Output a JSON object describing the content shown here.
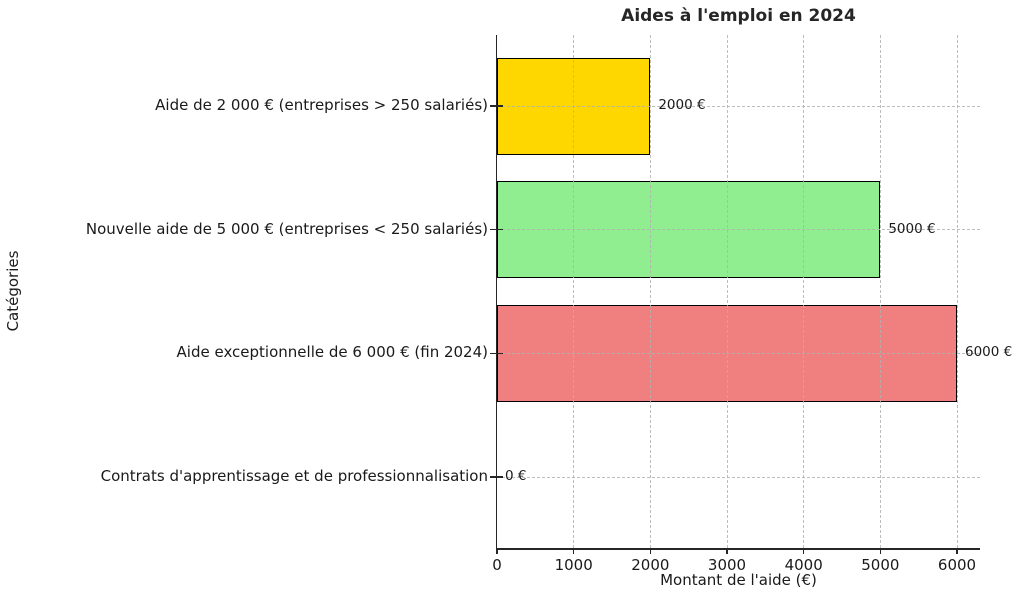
{
  "chart_data": {
    "type": "bar",
    "orientation": "horizontal",
    "title": "Aides à l'emploi en 2024",
    "xlabel": "Montant de l'aide (€)",
    "ylabel": "Catégories",
    "categories": [
      "Aide de 2 000 € (entreprises > 250 salariés)",
      "Nouvelle aide de 5 000 € (entreprises < 250 salariés)",
      "Aide exceptionnelle de 6 000 € (fin 2024)",
      "Contrats d'apprentissage et de professionnalisation"
    ],
    "values": [
      2000,
      5000,
      6000,
      0
    ],
    "value_labels": [
      "2000 €",
      "5000 €",
      "6000 €",
      "0 €"
    ],
    "bar_colors": [
      "#FFD700",
      "#90EE90",
      "#F08080",
      null
    ],
    "bar_edge_color": "#000000",
    "xticks": [
      0,
      1000,
      2000,
      3000,
      4000,
      5000,
      6000
    ],
    "xtick_labels": [
      "0",
      "1000",
      "2000",
      "3000",
      "4000",
      "5000",
      "6000"
    ],
    "xlim": [
      0,
      6300
    ],
    "grid": true,
    "grid_style": "dashed",
    "legend": false,
    "background_color": "#ffffff",
    "text_color": "#1a1a1a"
  }
}
